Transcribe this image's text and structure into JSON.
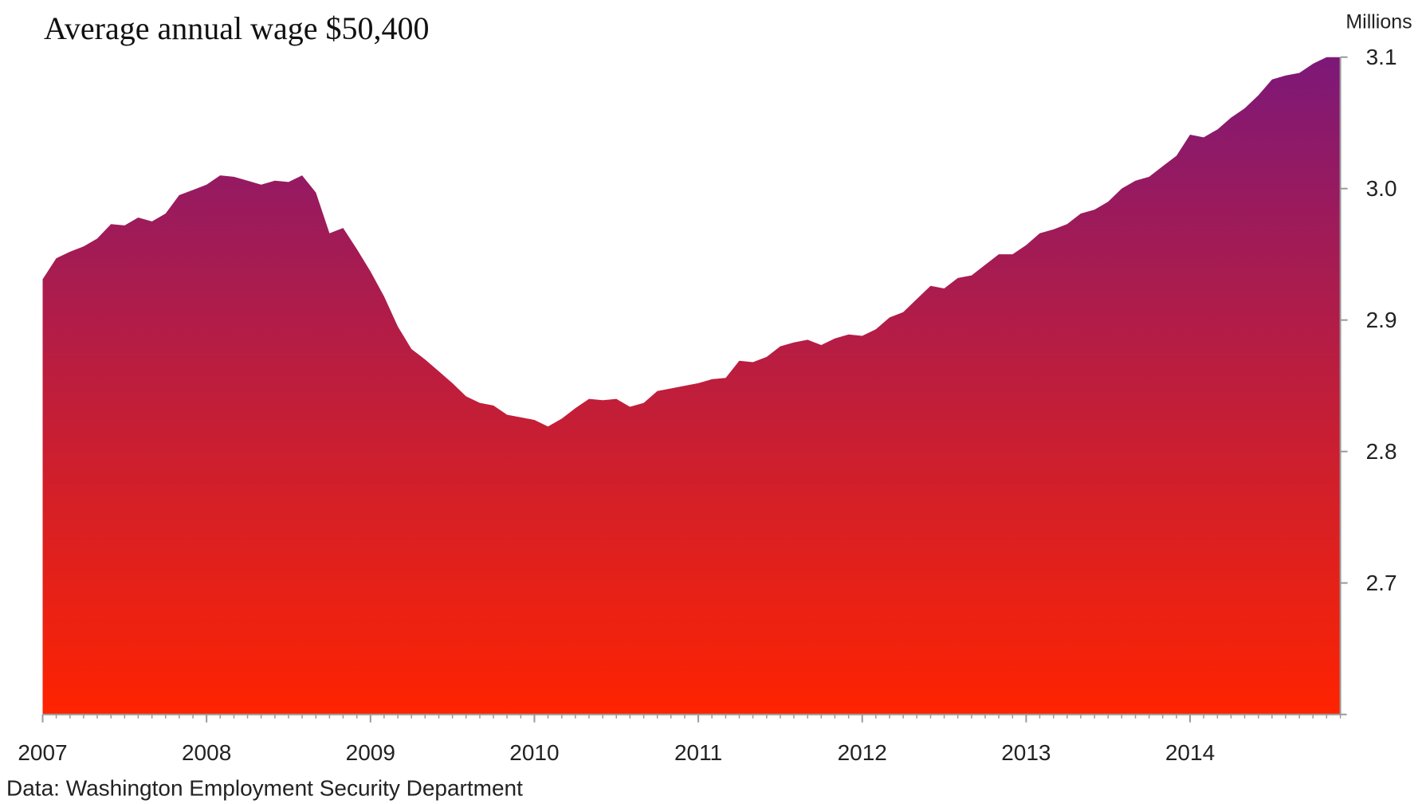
{
  "chart_data": {
    "type": "area",
    "subtitle": "Average annual wage $50,400",
    "y_axis_label": "Millions",
    "source": "Data: Washington Employment Security Department",
    "gradient": [
      "#7d1878",
      "#ff2300"
    ],
    "x": [
      2007,
      2007.083,
      2007.167,
      2007.25,
      2007.333,
      2007.417,
      2007.5,
      2007.583,
      2007.667,
      2007.75,
      2007.833,
      2007.917,
      2008,
      2008.083,
      2008.167,
      2008.25,
      2008.333,
      2008.417,
      2008.5,
      2008.583,
      2008.667,
      2008.75,
      2008.833,
      2008.917,
      2009,
      2009.083,
      2009.167,
      2009.25,
      2009.333,
      2009.417,
      2009.5,
      2009.583,
      2009.667,
      2009.75,
      2009.833,
      2009.917,
      2010,
      2010.083,
      2010.167,
      2010.25,
      2010.333,
      2010.417,
      2010.5,
      2010.583,
      2010.667,
      2010.75,
      2010.833,
      2010.917,
      2011,
      2011.083,
      2011.167,
      2011.25,
      2011.333,
      2011.417,
      2011.5,
      2011.583,
      2011.667,
      2011.75,
      2011.833,
      2011.917,
      2012,
      2012.083,
      2012.167,
      2012.25,
      2012.333,
      2012.417,
      2012.5,
      2012.583,
      2012.667,
      2012.75,
      2012.833,
      2012.917,
      2013,
      2013.083,
      2013.167,
      2013.25,
      2013.333,
      2013.417,
      2013.5,
      2013.583,
      2013.667,
      2013.75,
      2013.833,
      2013.917,
      2014,
      2014.083,
      2014.167,
      2014.25,
      2014.333,
      2014.417,
      2014.5,
      2014.583,
      2014.667,
      2014.75,
      2014.833,
      2014.917
    ],
    "values": [
      2.931,
      2.947,
      2.952,
      2.956,
      2.962,
      2.973,
      2.972,
      2.978,
      2.975,
      2.981,
      2.995,
      2.999,
      3.003,
      3.01,
      3.009,
      3.006,
      3.003,
      3.006,
      3.005,
      3.01,
      2.997,
      2.966,
      2.97,
      2.954,
      2.937,
      2.918,
      2.895,
      2.878,
      2.87,
      2.861,
      2.852,
      2.842,
      2.837,
      2.835,
      2.828,
      2.826,
      2.824,
      2.819,
      2.825,
      2.833,
      2.84,
      2.839,
      2.84,
      2.834,
      2.837,
      2.846,
      2.848,
      2.85,
      2.852,
      2.855,
      2.856,
      2.869,
      2.868,
      2.872,
      2.88,
      2.883,
      2.885,
      2.881,
      2.886,
      2.889,
      2.888,
      2.893,
      2.902,
      2.906,
      2.916,
      2.926,
      2.924,
      2.932,
      2.934,
      2.942,
      2.95,
      2.95,
      2.957,
      2.966,
      2.969,
      2.973,
      2.981,
      2.984,
      2.99,
      3.0,
      3.006,
      3.009,
      3.017,
      3.025,
      3.041,
      3.039,
      3.045,
      3.054,
      3.061,
      3.071,
      3.083,
      3.086,
      3.088,
      3.095,
      3.1,
      3.1
    ],
    "xlim": [
      2007,
      2014.917
    ],
    "xticks": [
      2007,
      2008,
      2009,
      2010,
      2011,
      2012,
      2013,
      2014
    ],
    "ylim": [
      2.6,
      3.1
    ],
    "yticks": [
      2.7,
      2.8,
      2.9,
      {
        "value": 3,
        "label": "3.0"
      },
      3.1
    ]
  }
}
